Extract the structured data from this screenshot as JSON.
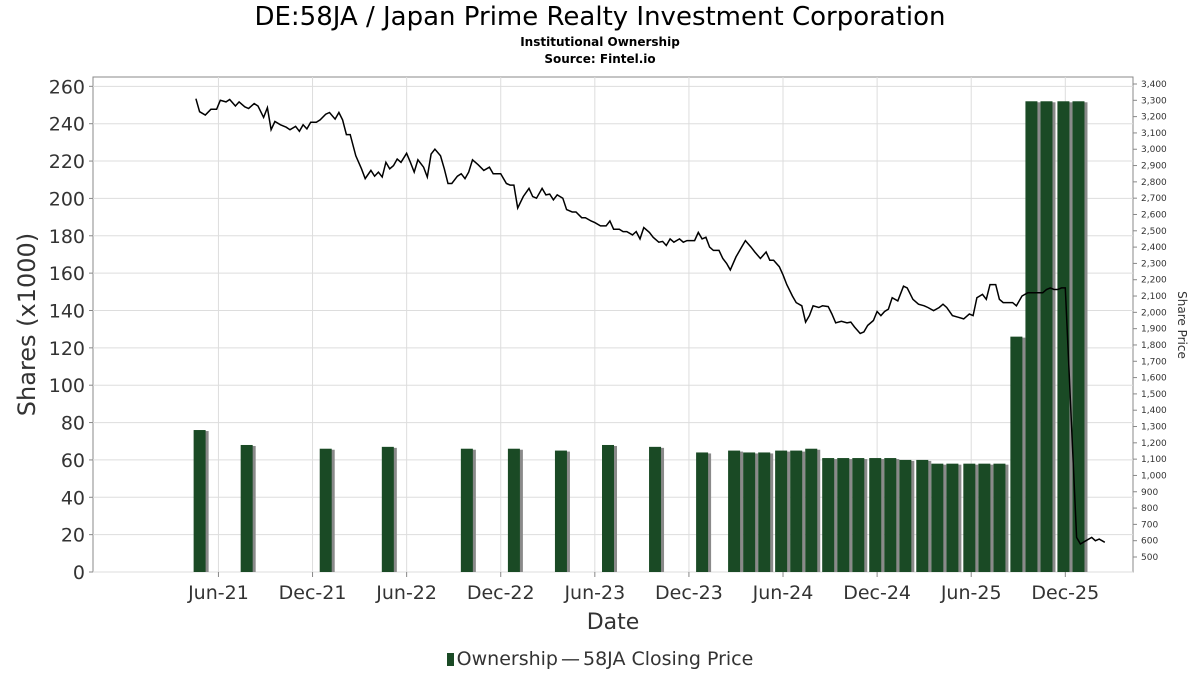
{
  "colors": {
    "bar": "#1a4a25",
    "bar_shadow": "#8a8a8a",
    "line": "#000000",
    "grid": "#dddddd",
    "axis": "#888888"
  },
  "chart_data": {
    "type": "bar+line",
    "title": "DE:58JA / Japan Prime Realty Investment Corporation",
    "subtitle": "Institutional Ownership",
    "source": "Source: Fintel.io",
    "xlabel": "Date",
    "ylabel": "Shares (x1000)",
    "y2label": "Share Price",
    "ylim": [
      0,
      265
    ],
    "y2lim": [
      400,
      3450
    ],
    "yticks": [
      0,
      20,
      40,
      60,
      80,
      100,
      120,
      140,
      160,
      180,
      200,
      220,
      240,
      260
    ],
    "y2ticks": [
      500,
      600,
      700,
      800,
      900,
      "1,000",
      "1,100",
      "1,200",
      "1,300",
      "1,400",
      "1,500",
      "1,600",
      "1,700",
      "1,800",
      "1,900",
      "2,000",
      "2,100",
      "2,200",
      "2,300",
      "2,400",
      "2,500",
      "2,600",
      "2,700",
      "2,800",
      "2,900",
      "3,000",
      "3,100",
      "3,200",
      "3,300",
      "3,400"
    ],
    "xticks": [
      {
        "label": "Jun-21",
        "t": 2021.42
      },
      {
        "label": "Dec-21",
        "t": 2021.92
      },
      {
        "label": "Jun-22",
        "t": 2022.42
      },
      {
        "label": "Dec-22",
        "t": 2022.92
      },
      {
        "label": "Jun-23",
        "t": 2023.42
      },
      {
        "label": "Dec-23",
        "t": 2023.92
      },
      {
        "label": "Jun-24",
        "t": 2024.42
      },
      {
        "label": "Dec-24",
        "t": 2024.92
      },
      {
        "label": "Jun-25",
        "t": 2025.42
      },
      {
        "label": "Dec-25",
        "t": 2025.92
      }
    ],
    "xlim": [
      2020.78,
      2026.2
    ],
    "series": [
      {
        "name": "Ownership",
        "kind": "bar",
        "points": [
          {
            "t": 2021.32,
            "v": 76
          },
          {
            "t": 2021.57,
            "v": 68
          },
          {
            "t": 2021.99,
            "v": 66
          },
          {
            "t": 2022.32,
            "v": 67
          },
          {
            "t": 2022.74,
            "v": 66
          },
          {
            "t": 2022.99,
            "v": 66
          },
          {
            "t": 2023.24,
            "v": 65
          },
          {
            "t": 2023.49,
            "v": 68
          },
          {
            "t": 2023.74,
            "v": 67
          },
          {
            "t": 2023.99,
            "v": 64
          },
          {
            "t": 2024.16,
            "v": 65
          },
          {
            "t": 2024.24,
            "v": 64
          },
          {
            "t": 2024.32,
            "v": 64
          },
          {
            "t": 2024.41,
            "v": 65
          },
          {
            "t": 2024.49,
            "v": 65
          },
          {
            "t": 2024.57,
            "v": 66
          },
          {
            "t": 2024.66,
            "v": 61
          },
          {
            "t": 2024.74,
            "v": 61
          },
          {
            "t": 2024.82,
            "v": 61
          },
          {
            "t": 2024.91,
            "v": 61
          },
          {
            "t": 2024.99,
            "v": 61
          },
          {
            "t": 2025.07,
            "v": 60
          },
          {
            "t": 2025.16,
            "v": 60
          },
          {
            "t": 2025.24,
            "v": 58
          },
          {
            "t": 2025.32,
            "v": 58
          },
          {
            "t": 2025.41,
            "v": 58
          },
          {
            "t": 2025.49,
            "v": 58
          },
          {
            "t": 2025.57,
            "v": 58
          },
          {
            "t": 2025.66,
            "v": 126
          },
          {
            "t": 2025.74,
            "v": 252
          },
          {
            "t": 2025.82,
            "v": 252
          },
          {
            "t": 2025.91,
            "v": 252
          },
          {
            "t": 2025.99,
            "v": 252
          }
        ]
      },
      {
        "name": "58JA Closing Price",
        "kind": "line",
        "axis": "right",
        "points": [
          [
            2021.3,
            3310
          ],
          [
            2021.32,
            3230
          ],
          [
            2021.35,
            3210
          ],
          [
            2021.38,
            3245
          ],
          [
            2021.41,
            3245
          ],
          [
            2021.43,
            3300
          ],
          [
            2021.46,
            3290
          ],
          [
            2021.48,
            3305
          ],
          [
            2021.51,
            3265
          ],
          [
            2021.53,
            3290
          ],
          [
            2021.56,
            3260
          ],
          [
            2021.58,
            3250
          ],
          [
            2021.61,
            3280
          ],
          [
            2021.63,
            3265
          ],
          [
            2021.66,
            3195
          ],
          [
            2021.68,
            3255
          ],
          [
            2021.7,
            3120
          ],
          [
            2021.72,
            3170
          ],
          [
            2021.75,
            3150
          ],
          [
            2021.78,
            3135
          ],
          [
            2021.8,
            3120
          ],
          [
            2021.83,
            3140
          ],
          [
            2021.85,
            3110
          ],
          [
            2021.87,
            3150
          ],
          [
            2021.89,
            3125
          ],
          [
            2021.91,
            3165
          ],
          [
            2021.94,
            3165
          ],
          [
            2021.96,
            3180
          ],
          [
            2021.99,
            3215
          ],
          [
            2022.01,
            3225
          ],
          [
            2022.04,
            3185
          ],
          [
            2022.06,
            3225
          ],
          [
            2022.08,
            3180
          ],
          [
            2022.1,
            3090
          ],
          [
            2022.12,
            3090
          ],
          [
            2022.15,
            2960
          ],
          [
            2022.18,
            2880
          ],
          [
            2022.2,
            2820
          ],
          [
            2022.23,
            2870
          ],
          [
            2022.25,
            2835
          ],
          [
            2022.27,
            2860
          ],
          [
            2022.29,
            2830
          ],
          [
            2022.31,
            2920
          ],
          [
            2022.33,
            2880
          ],
          [
            2022.35,
            2900
          ],
          [
            2022.37,
            2940
          ],
          [
            2022.39,
            2920
          ],
          [
            2022.42,
            2975
          ],
          [
            2022.44,
            2920
          ],
          [
            2022.46,
            2860
          ],
          [
            2022.48,
            2935
          ],
          [
            2022.51,
            2890
          ],
          [
            2022.53,
            2830
          ],
          [
            2022.55,
            2970
          ],
          [
            2022.57,
            3000
          ],
          [
            2022.6,
            2960
          ],
          [
            2022.62,
            2880
          ],
          [
            2022.64,
            2790
          ],
          [
            2022.66,
            2790
          ],
          [
            2022.69,
            2835
          ],
          [
            2022.71,
            2850
          ],
          [
            2022.73,
            2820
          ],
          [
            2022.75,
            2860
          ],
          [
            2022.77,
            2935
          ],
          [
            2022.8,
            2905
          ],
          [
            2022.83,
            2870
          ],
          [
            2022.86,
            2890
          ],
          [
            2022.88,
            2850
          ],
          [
            2022.9,
            2850
          ],
          [
            2022.92,
            2850
          ],
          [
            2022.95,
            2790
          ],
          [
            2022.97,
            2780
          ],
          [
            2022.99,
            2780
          ],
          [
            2023.01,
            2640
          ],
          [
            2023.04,
            2710
          ],
          [
            2023.07,
            2760
          ],
          [
            2023.09,
            2710
          ],
          [
            2023.11,
            2700
          ],
          [
            2023.14,
            2760
          ],
          [
            2023.16,
            2720
          ],
          [
            2023.18,
            2725
          ],
          [
            2023.2,
            2690
          ],
          [
            2023.22,
            2720
          ],
          [
            2023.25,
            2700
          ],
          [
            2023.27,
            2630
          ],
          [
            2023.3,
            2615
          ],
          [
            2023.32,
            2615
          ],
          [
            2023.35,
            2580
          ],
          [
            2023.37,
            2580
          ],
          [
            2023.4,
            2560
          ],
          [
            2023.42,
            2550
          ],
          [
            2023.45,
            2530
          ],
          [
            2023.48,
            2530
          ],
          [
            2023.5,
            2560
          ],
          [
            2023.52,
            2510
          ],
          [
            2023.55,
            2510
          ],
          [
            2023.57,
            2495
          ],
          [
            2023.59,
            2495
          ],
          [
            2023.62,
            2475
          ],
          [
            2023.64,
            2495
          ],
          [
            2023.66,
            2450
          ],
          [
            2023.68,
            2520
          ],
          [
            2023.71,
            2490
          ],
          [
            2023.73,
            2460
          ],
          [
            2023.76,
            2430
          ],
          [
            2023.78,
            2435
          ],
          [
            2023.8,
            2410
          ],
          [
            2023.82,
            2450
          ],
          [
            2023.84,
            2430
          ],
          [
            2023.87,
            2450
          ],
          [
            2023.89,
            2430
          ],
          [
            2023.91,
            2440
          ],
          [
            2023.93,
            2440
          ],
          [
            2023.95,
            2440
          ],
          [
            2023.97,
            2490
          ],
          [
            2023.99,
            2450
          ],
          [
            2024.01,
            2460
          ],
          [
            2024.03,
            2400
          ],
          [
            2024.05,
            2380
          ],
          [
            2024.08,
            2380
          ],
          [
            2024.1,
            2330
          ],
          [
            2024.12,
            2300
          ],
          [
            2024.14,
            2260
          ],
          [
            2024.17,
            2340
          ],
          [
            2024.2,
            2400
          ],
          [
            2024.22,
            2440
          ],
          [
            2024.25,
            2400
          ],
          [
            2024.27,
            2370
          ],
          [
            2024.3,
            2330
          ],
          [
            2024.33,
            2370
          ],
          [
            2024.35,
            2320
          ],
          [
            2024.37,
            2320
          ],
          [
            2024.4,
            2280
          ],
          [
            2024.42,
            2230
          ],
          [
            2024.44,
            2170
          ],
          [
            2024.47,
            2100
          ],
          [
            2024.49,
            2060
          ],
          [
            2024.52,
            2040
          ],
          [
            2024.54,
            1940
          ],
          [
            2024.56,
            1980
          ],
          [
            2024.58,
            2040
          ],
          [
            2024.61,
            2030
          ],
          [
            2024.63,
            2040
          ],
          [
            2024.66,
            2035
          ],
          [
            2024.68,
            1990
          ],
          [
            2024.7,
            1935
          ],
          [
            2024.73,
            1945
          ],
          [
            2024.76,
            1935
          ],
          [
            2024.78,
            1940
          ],
          [
            2024.8,
            1910
          ],
          [
            2024.83,
            1870
          ],
          [
            2024.85,
            1880
          ],
          [
            2024.87,
            1920
          ],
          [
            2024.9,
            1950
          ],
          [
            2024.92,
            2005
          ],
          [
            2024.94,
            1980
          ],
          [
            2024.96,
            2005
          ],
          [
            2024.98,
            2020
          ],
          [
            2025.0,
            2090
          ],
          [
            2025.03,
            2070
          ],
          [
            2025.06,
            2160
          ],
          [
            2025.08,
            2150
          ],
          [
            2025.11,
            2080
          ],
          [
            2025.14,
            2050
          ],
          [
            2025.17,
            2040
          ],
          [
            2025.19,
            2030
          ],
          [
            2025.22,
            2010
          ],
          [
            2025.25,
            2030
          ],
          [
            2025.27,
            2050
          ],
          [
            2025.29,
            2030
          ],
          [
            2025.32,
            1980
          ],
          [
            2025.35,
            1970
          ],
          [
            2025.38,
            1960
          ],
          [
            2025.41,
            1990
          ],
          [
            2025.43,
            1980
          ],
          [
            2025.45,
            2090
          ],
          [
            2025.48,
            2110
          ],
          [
            2025.5,
            2080
          ],
          [
            2025.52,
            2170
          ],
          [
            2025.55,
            2170
          ],
          [
            2025.57,
            2080
          ],
          [
            2025.59,
            2060
          ],
          [
            2025.61,
            2060
          ],
          [
            2025.64,
            2060
          ],
          [
            2025.66,
            2040
          ],
          [
            2025.69,
            2100
          ],
          [
            2025.72,
            2120
          ],
          [
            2025.74,
            2120
          ],
          [
            2025.77,
            2120
          ],
          [
            2025.8,
            2120
          ],
          [
            2025.82,
            2140
          ],
          [
            2025.84,
            2150
          ],
          [
            2025.86,
            2140
          ],
          [
            2025.88,
            2140
          ],
          [
            2025.9,
            2150
          ],
          [
            2025.92,
            2150
          ],
          [
            2025.98,
            620
          ],
          [
            2026.0,
            580
          ],
          [
            2026.03,
            600
          ],
          [
            2026.06,
            620
          ],
          [
            2026.08,
            600
          ],
          [
            2026.1,
            610
          ],
          [
            2026.13,
            590
          ]
        ]
      }
    ],
    "legend": [
      "Ownership",
      "58JA Closing Price"
    ]
  }
}
